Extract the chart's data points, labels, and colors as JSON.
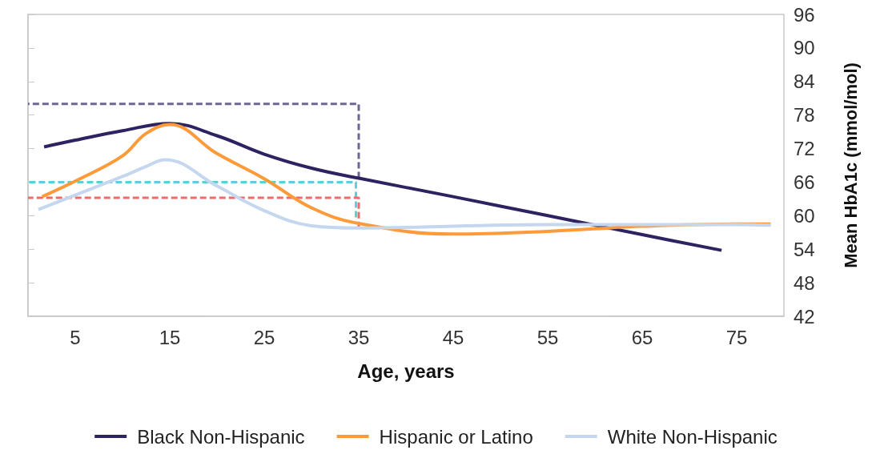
{
  "chart_data": {
    "type": "line",
    "xlabel": "Age, years",
    "ylabel": "Mean HbA1c (mmol/mol)",
    "xlim": [
      0,
      80
    ],
    "xticks": [
      5,
      15,
      25,
      35,
      45,
      55,
      65,
      75
    ],
    "ylim": [
      42,
      96
    ],
    "yticks": [
      42,
      48,
      54,
      60,
      66,
      72,
      78,
      84,
      90,
      96
    ],
    "grid": false,
    "legend": "bottom",
    "marker": "none",
    "line_style": "solid",
    "series": [
      {
        "name": "Black Non-Hispanic",
        "color": "#2e2260",
        "x": [
          1.7,
          5,
          10,
          15,
          20,
          25,
          30,
          35,
          45,
          55,
          65,
          73.4
        ],
        "values": [
          72.3,
          73.5,
          75.2,
          76.5,
          74.3,
          71,
          68.5,
          66.7,
          63.4,
          60,
          56.6,
          53.8
        ]
      },
      {
        "name": "Hispanic or Latino",
        "color": "#fd9a3a",
        "x": [
          1.5,
          5.5,
          10,
          12.5,
          15,
          20,
          25,
          30,
          35,
          45,
          55,
          65,
          75,
          78.6
        ],
        "values": [
          63.4,
          66.6,
          70.7,
          74.7,
          76.3,
          71.1,
          66.6,
          61.4,
          58.6,
          56.7,
          57.2,
          58.1,
          58.5,
          58.5
        ]
      },
      {
        "name": "White Non-Hispanic",
        "color": "#c5d7ee",
        "x": [
          1.1,
          10,
          12.5,
          14.5,
          20,
          25,
          30,
          35,
          55,
          75,
          78.6
        ],
        "values": [
          61.1,
          67,
          68.8,
          70,
          65.3,
          60.9,
          58.2,
          57.8,
          58.4,
          58.4,
          58.3
        ]
      },
      {
        "color": "#6f6591",
        "line_style": "dashed",
        "x": [
          0,
          35,
          35
        ],
        "values": [
          80,
          80,
          66.7
        ]
      },
      {
        "color": "#5ccfd9",
        "line_style": "dashed",
        "x": [
          0,
          34.7,
          34.7
        ],
        "values": [
          66,
          66,
          59.7
        ]
      },
      {
        "color": "#ef6b66",
        "line_style": "dashed",
        "x": [
          0,
          35,
          35
        ],
        "values": [
          63.2,
          63.2,
          57.8
        ]
      }
    ]
  }
}
